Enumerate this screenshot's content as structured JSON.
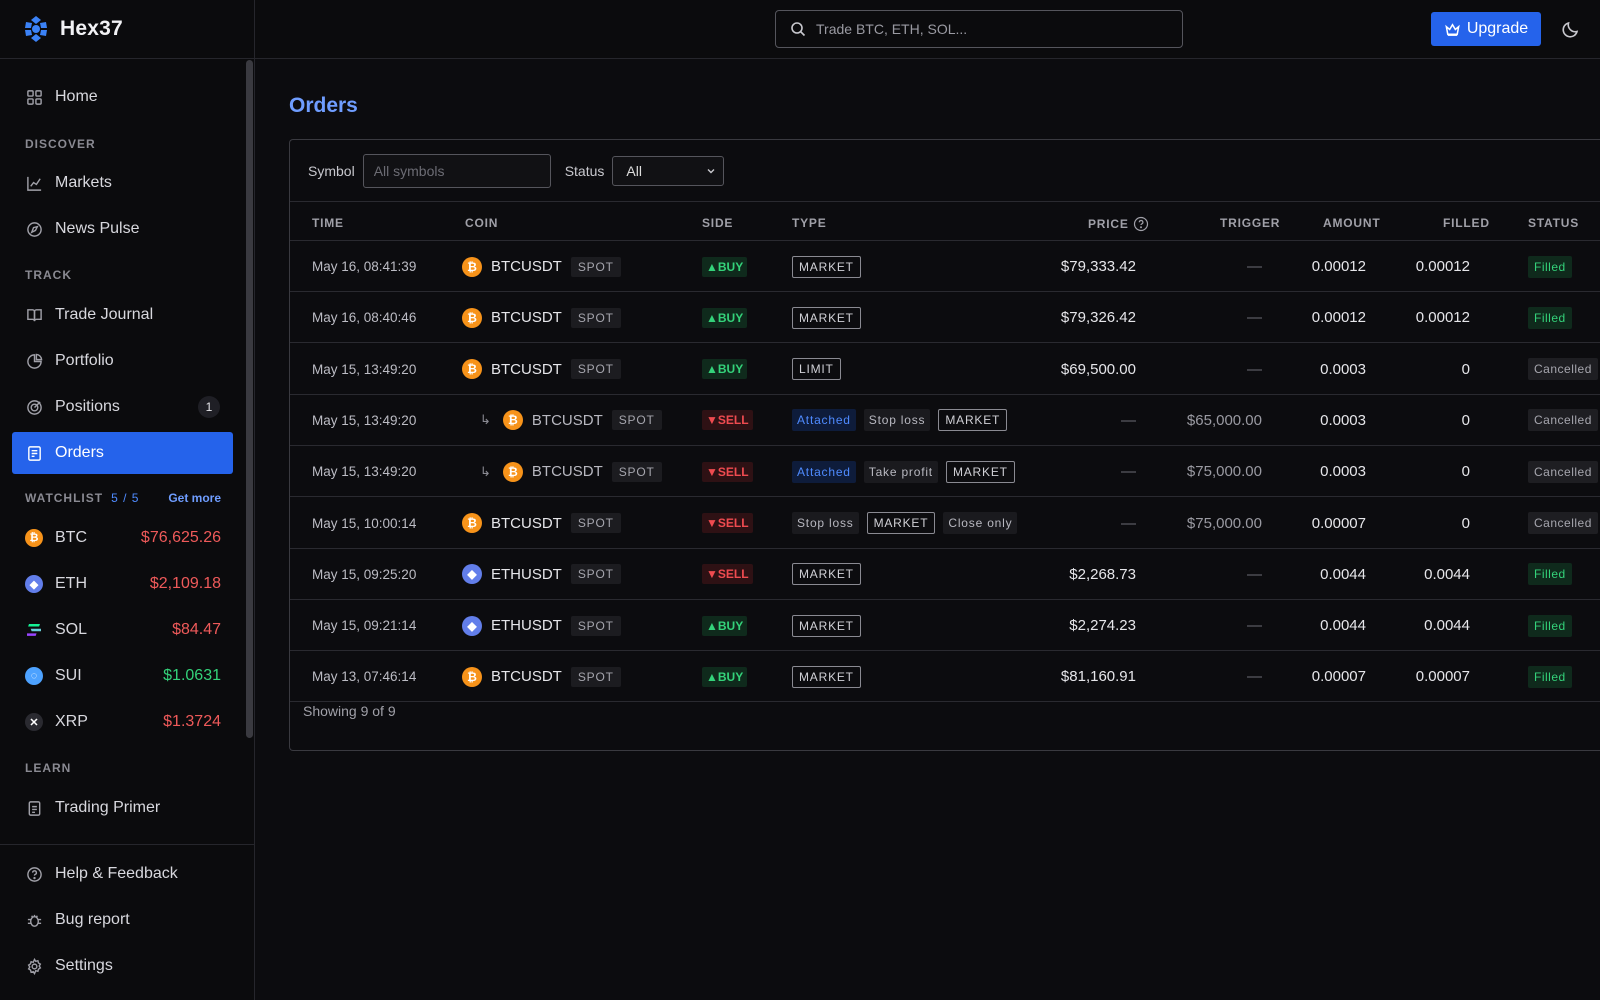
{
  "brand": {
    "name": "Hex37"
  },
  "search": {
    "placeholder": "Trade BTC, ETH, SOL..."
  },
  "topbar": {
    "upgrade_label": "Upgrade"
  },
  "sidebar": {
    "home": "Home",
    "discover_label": "DISCOVER",
    "markets": "Markets",
    "news": "News Pulse",
    "track_label": "TRACK",
    "journal": "Trade Journal",
    "portfolio": "Portfolio",
    "positions": "Positions",
    "positions_badge": "1",
    "orders": "Orders",
    "watchlist_label": "WATCHLIST",
    "watchlist_count": "5 / 5",
    "get_more": "Get more",
    "watchlist": [
      {
        "symbol": "BTC",
        "price": "$76,625.26",
        "color": "#ef5a5a"
      },
      {
        "symbol": "ETH",
        "price": "$2,109.18",
        "color": "#ef5a5a"
      },
      {
        "symbol": "SOL",
        "price": "$84.47",
        "color": "#ef5a5a"
      },
      {
        "symbol": "SUI",
        "price": "$1.0631",
        "color": "#34d27a"
      },
      {
        "symbol": "XRP",
        "price": "$1.3724",
        "color": "#ef5a5a"
      }
    ],
    "learn_label": "LEARN",
    "primer": "Trading Primer",
    "help": "Help & Feedback",
    "bug": "Bug report",
    "settings": "Settings"
  },
  "main": {
    "title": "Orders",
    "filters": {
      "symbol_label": "Symbol",
      "symbol_placeholder": "All symbols",
      "status_label": "Status",
      "status_value": "All"
    },
    "columns": [
      "TIME",
      "COIN",
      "SIDE",
      "TYPE",
      "PRICE",
      "TRIGGER",
      "AMOUNT",
      "FILLED",
      "STATUS"
    ],
    "rows": [
      {
        "time": "May 16, 08:41:39",
        "coin": "BTCUSDT",
        "market": "SPOT",
        "side": "BUY",
        "type": [
          "MARKET"
        ],
        "price": "$79,333.42",
        "trigger": "—",
        "amount": "0.00012",
        "filled": "0.00012",
        "status": "Filled"
      },
      {
        "time": "May 16, 08:40:46",
        "coin": "BTCUSDT",
        "market": "SPOT",
        "side": "BUY",
        "type": [
          "MARKET"
        ],
        "price": "$79,326.42",
        "trigger": "—",
        "amount": "0.00012",
        "filled": "0.00012",
        "status": "Filled"
      },
      {
        "time": "May 15, 13:49:20",
        "coin": "BTCUSDT",
        "market": "SPOT",
        "side": "BUY",
        "type": [
          "LIMIT"
        ],
        "price": "$69,500.00",
        "trigger": "—",
        "amount": "0.0003",
        "filled": "0",
        "status": "Cancelled"
      },
      {
        "time": "May 15, 13:49:20",
        "coin": "BTCUSDT",
        "market": "SPOT",
        "side": "SELL",
        "child": true,
        "type": [
          "Attached",
          "Stop loss",
          "MARKET"
        ],
        "price": "—",
        "trigger": "$65,000.00",
        "amount": "0.0003",
        "filled": "0",
        "status": "Cancelled"
      },
      {
        "time": "May 15, 13:49:20",
        "coin": "BTCUSDT",
        "market": "SPOT",
        "side": "SELL",
        "child": true,
        "type": [
          "Attached",
          "Take profit",
          "MARKET"
        ],
        "price": "—",
        "trigger": "$75,000.00",
        "amount": "0.0003",
        "filled": "0",
        "status": "Cancelled"
      },
      {
        "time": "May 15, 10:00:14",
        "coin": "BTCUSDT",
        "market": "SPOT",
        "side": "SELL",
        "type": [
          "Stop loss",
          "MARKET",
          "Close only"
        ],
        "price": "—",
        "trigger": "$75,000.00",
        "amount": "0.00007",
        "filled": "0",
        "status": "Cancelled"
      },
      {
        "time": "May 15, 09:25:20",
        "coin": "ETHUSDT",
        "market": "SPOT",
        "side": "SELL",
        "type": [
          "MARKET"
        ],
        "price": "$2,268.73",
        "trigger": "—",
        "amount": "0.0044",
        "filled": "0.0044",
        "status": "Filled"
      },
      {
        "time": "May 15, 09:21:14",
        "coin": "ETHUSDT",
        "market": "SPOT",
        "side": "BUY",
        "type": [
          "MARKET"
        ],
        "price": "$2,274.23",
        "trigger": "—",
        "amount": "0.0044",
        "filled": "0.0044",
        "status": "Filled"
      },
      {
        "time": "May 13, 07:46:14",
        "coin": "BTCUSDT",
        "market": "SPOT",
        "side": "BUY",
        "type": [
          "MARKET"
        ],
        "price": "$81,160.91",
        "trigger": "—",
        "amount": "0.00007",
        "filled": "0.00007",
        "status": "Filled"
      }
    ],
    "footer": "Showing 9 of 9"
  }
}
